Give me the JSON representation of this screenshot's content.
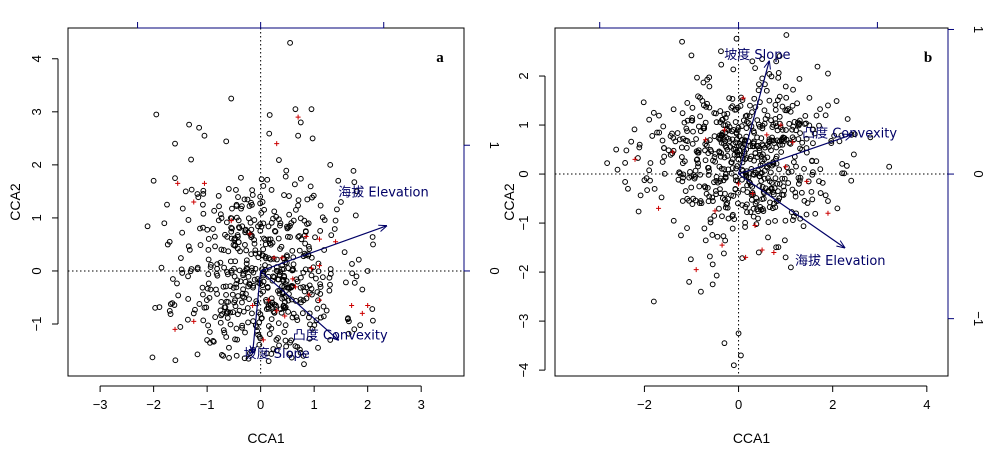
{
  "colors": {
    "sites": "#000000",
    "species": "#cc0000",
    "arrows": "#000066",
    "top_axis": "#00007a"
  },
  "chart_data": [
    {
      "type": "scatter",
      "panel_label": "a",
      "xlabel": "CCA1",
      "ylabel": "CCA2",
      "xlim": [
        -3.6,
        3.8
      ],
      "ylim": [
        -1.98,
        4.58
      ],
      "x_ticks": [
        -3,
        -2,
        -1,
        0,
        1,
        2,
        3
      ],
      "y_ticks": [
        -1,
        0,
        1,
        2,
        3,
        4
      ],
      "top_ticks": [
        -2.3,
        0,
        2.3
      ],
      "right_ticks": [
        0,
        1
      ],
      "right_tick_labels": [
        "0",
        "1"
      ],
      "right_unit_span": 2.37,
      "origin_lines": true,
      "site_n": 560,
      "site_seed": 11,
      "site_cx": 0.0,
      "site_cy": 0.0,
      "site_sx": 0.75,
      "site_sy": 0.95,
      "sites_extra": [
        [
          0.55,
          4.3
        ],
        [
          -0.55,
          3.25
        ],
        [
          0.95,
          3.05
        ],
        [
          0.65,
          3.05
        ],
        [
          0.75,
          2.8
        ],
        [
          -1.95,
          2.95
        ],
        [
          0.7,
          2.55
        ],
        [
          -1.15,
          2.7
        ],
        [
          -1.05,
          2.55
        ],
        [
          1.3,
          2.0
        ],
        [
          1.45,
          1.7
        ],
        [
          1.8,
          1.5
        ],
        [
          1.5,
          1.3
        ],
        [
          1.4,
          0.95
        ],
        [
          2.1,
          0.5
        ],
        [
          2.0,
          0.0
        ],
        [
          1.9,
          -0.35
        ],
        [
          -1.6,
          2.4
        ],
        [
          -1.3,
          2.1
        ],
        [
          -2.0,
          1.7
        ],
        [
          -1.6,
          1.75
        ],
        [
          -1.4,
          1.5
        ],
        [
          -1.75,
          1.25
        ],
        [
          -1.8,
          0.9
        ],
        [
          -1.7,
          0.55
        ],
        [
          -0.7,
          -1.6
        ],
        [
          -0.2,
          -1.55
        ],
        [
          0.15,
          -1.7
        ],
        [
          0.55,
          -1.35
        ],
        [
          1.3,
          -1.3
        ],
        [
          1.75,
          -1.1
        ],
        [
          -1.25,
          -0.8
        ],
        [
          -0.95,
          -1.15
        ],
        [
          0.3,
          -1.5
        ],
        [
          0.8,
          -1.6
        ]
      ],
      "species": [
        [
          -1.6,
          -1.1
        ],
        [
          -1.25,
          -0.95
        ],
        [
          -1.55,
          1.65
        ],
        [
          -1.25,
          1.3
        ],
        [
          -1.05,
          1.65
        ],
        [
          -0.55,
          0.95
        ],
        [
          -0.2,
          0.7
        ],
        [
          0.3,
          2.4
        ],
        [
          0.7,
          2.9
        ],
        [
          0.85,
          0.65
        ],
        [
          1.1,
          0.1
        ],
        [
          1.4,
          0.55
        ],
        [
          0.95,
          0.05
        ],
        [
          0.65,
          -0.3
        ],
        [
          1.9,
          -0.8
        ],
        [
          2.0,
          -0.65
        ],
        [
          1.7,
          -0.65
        ],
        [
          1.1,
          -0.55
        ],
        [
          0.9,
          -0.45
        ],
        [
          0.3,
          -0.75
        ],
        [
          0.45,
          -0.85
        ],
        [
          0.25,
          0.25
        ],
        [
          0.15,
          -0.55
        ],
        [
          -0.15,
          -0.65
        ],
        [
          0.05,
          -1.3
        ],
        [
          1.1,
          0.6
        ],
        [
          0.4,
          0.25
        ],
        [
          0.6,
          -0.15
        ]
      ],
      "arrows": [
        {
          "label": "海拔 Elevation",
          "x": 2.35,
          "y": 0.85,
          "lx": 1.45,
          "ly": 1.5,
          "anchor": "start"
        },
        {
          "label": "凸度 Convexity",
          "x": 1.45,
          "y": -1.3,
          "lx": 0.6,
          "ly": -1.2,
          "anchor": "start"
        },
        {
          "label": "坡度 Slope",
          "x": -0.15,
          "y": -1.55,
          "lx": 0.3,
          "ly": -1.55,
          "anchor": "middle"
        }
      ]
    },
    {
      "type": "scatter",
      "panel_label": "b",
      "xlabel": "CCA1",
      "ylabel": "CCA2",
      "xlim": [
        -3.9,
        4.45
      ],
      "ylim": [
        -4.12,
        2.98
      ],
      "x_ticks": [
        -2,
        0,
        2,
        4
      ],
      "y_ticks": [
        -4,
        -3,
        -2,
        -1,
        0,
        1,
        2
      ],
      "top_ticks": [
        -2.95,
        0,
        2.95
      ],
      "right_ticks": [
        -1,
        0,
        1
      ],
      "right_tick_labels": [
        "-1",
        "0",
        "1"
      ],
      "right_unit_span": 2.95,
      "origin_lines": true,
      "site_n": 620,
      "site_seed": 23,
      "site_cx": 0.0,
      "site_cy": 0.3,
      "site_sx": 0.95,
      "site_sy": 0.8,
      "sites_extra": [
        [
          -1.2,
          2.7
        ],
        [
          0.8,
          2.3
        ],
        [
          1.9,
          2.05
        ],
        [
          0.0,
          -3.25
        ],
        [
          0.05,
          -3.7
        ],
        [
          -0.3,
          -3.45
        ],
        [
          -0.1,
          -3.9
        ],
        [
          -2.35,
          -0.3
        ],
        [
          -2.6,
          0.5
        ],
        [
          -2.1,
          0.6
        ],
        [
          3.2,
          0.15
        ],
        [
          2.8,
          0.75
        ],
        [
          2.4,
          0.8
        ],
        [
          -1.8,
          -2.6
        ],
        [
          -1.05,
          -2.2
        ],
        [
          -0.8,
          -2.4
        ],
        [
          -0.55,
          -2.25
        ],
        [
          1.0,
          -1.7
        ],
        [
          1.9,
          -0.55
        ],
        [
          2.1,
          -0.7
        ],
        [
          2.45,
          0.4
        ],
        [
          1.9,
          1.4
        ],
        [
          1.85,
          1.2
        ],
        [
          -1.8,
          1.25
        ],
        [
          -1.15,
          1.05
        ],
        [
          0.6,
          1.7
        ],
        [
          -0.2,
          1.55
        ]
      ],
      "species": [
        [
          -2.2,
          0.3
        ],
        [
          -1.7,
          -0.7
        ],
        [
          -0.9,
          -1.95
        ],
        [
          -0.5,
          -0.75
        ],
        [
          -0.35,
          -1.45
        ],
        [
          0.0,
          -0.2
        ],
        [
          0.3,
          -0.4
        ],
        [
          0.15,
          -1.7
        ],
        [
          0.5,
          -1.55
        ],
        [
          0.75,
          -1.6
        ],
        [
          1.45,
          -0.15
        ],
        [
          1.9,
          -0.8
        ],
        [
          1.0,
          0.15
        ],
        [
          0.6,
          0.8
        ],
        [
          0.35,
          -1.05
        ],
        [
          1.15,
          0.65
        ],
        [
          0.1,
          1.55
        ],
        [
          -0.3,
          0.9
        ],
        [
          -0.7,
          0.7
        ],
        [
          -1.4,
          0.45
        ],
        [
          0.9,
          1.0
        ]
      ],
      "arrows": [
        {
          "label": "坡度 Slope",
          "x": 0.65,
          "y": 2.3,
          "lx": 0.4,
          "ly": 2.45,
          "anchor": "middle"
        },
        {
          "label": "凸度 Convexity",
          "x": 2.4,
          "y": 0.8,
          "lx": 1.35,
          "ly": 0.85,
          "anchor": "start"
        },
        {
          "label": "海拔 Elevation",
          "x": 2.25,
          "y": -1.5,
          "lx": 1.2,
          "ly": -1.75,
          "anchor": "start"
        }
      ]
    }
  ]
}
